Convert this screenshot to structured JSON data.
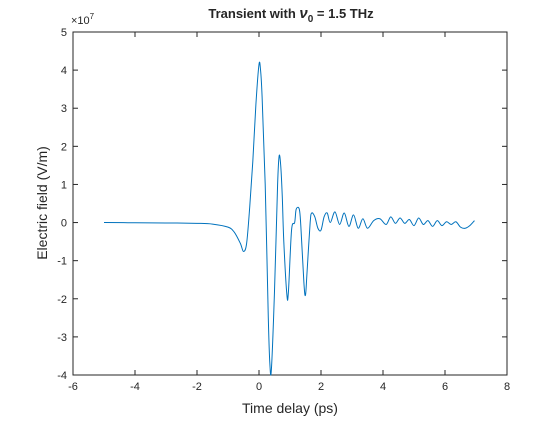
{
  "chart_data": {
    "type": "line",
    "title_main": "Transient with ",
    "title_symbol": "ν",
    "title_subscript": "0",
    "title_rest": " = 1.5 THz",
    "xlabel": "Time delay (ps)",
    "ylabel": "Electric field (V/m)",
    "exponent_base": "×10",
    "exponent_power": "7",
    "xlim": [
      -6,
      8
    ],
    "ylim": [
      -4,
      5
    ],
    "xticks": [
      -6,
      -4,
      -2,
      0,
      2,
      4,
      6,
      8
    ],
    "yticks": [
      -4,
      -3,
      -2,
      -1,
      0,
      1,
      2,
      3,
      4,
      5
    ],
    "xtick_labels": [
      "-6",
      "-4",
      "-2",
      "0",
      "2",
      "4",
      "6",
      "8"
    ],
    "ytick_labels": [
      "-4",
      "-3",
      "-2",
      "-1",
      "0",
      "1",
      "2",
      "3",
      "4",
      "5"
    ],
    "grid": false,
    "line_color": "#0072BD",
    "series": [
      {
        "x": [
          -5.0,
          -4.0,
          -3.0,
          -2.0,
          -1.5,
          -1.0,
          -0.8,
          -0.6,
          -0.5,
          -0.4,
          -0.3,
          -0.2,
          -0.1,
          0.0,
          0.05,
          0.1,
          0.2,
          0.3,
          0.35,
          0.4,
          0.5,
          0.6,
          0.65,
          0.7,
          0.75,
          0.8,
          0.9,
          0.95,
          1.05,
          1.15,
          1.2,
          1.3,
          1.35,
          1.45,
          1.5,
          1.55,
          1.65,
          1.7,
          1.8,
          1.9,
          2.0,
          2.1,
          2.2,
          2.3,
          2.45,
          2.6,
          2.75,
          2.9,
          3.05,
          3.2,
          3.35,
          3.5,
          3.7,
          3.9,
          4.1,
          4.25,
          4.4,
          4.55,
          4.7,
          4.85,
          5.0,
          5.15,
          5.3,
          5.45,
          5.6,
          5.75,
          5.9,
          6.05,
          6.2,
          6.35,
          6.5,
          6.65,
          6.8,
          6.95
        ],
        "y": [
          0.0,
          -0.005,
          -0.01,
          -0.02,
          -0.04,
          -0.12,
          -0.25,
          -0.55,
          -0.76,
          -0.55,
          0.4,
          1.6,
          3.1,
          4.15,
          4.0,
          3.3,
          1.0,
          -2.5,
          -3.7,
          -3.85,
          -1.8,
          1.0,
          1.75,
          1.5,
          0.7,
          -0.5,
          -1.9,
          -1.8,
          -0.2,
          0.0,
          0.35,
          0.35,
          -0.1,
          -1.6,
          -1.9,
          -1.3,
          0.0,
          0.25,
          0.15,
          -0.15,
          -0.2,
          0.15,
          0.25,
          0.0,
          0.28,
          -0.05,
          0.25,
          -0.1,
          0.2,
          -0.15,
          0.1,
          -0.15,
          0.05,
          0.1,
          -0.05,
          0.15,
          -0.02,
          0.12,
          -0.02,
          0.08,
          -0.08,
          0.12,
          -0.05,
          0.05,
          -0.1,
          0.05,
          -0.08,
          0.02,
          -0.05,
          0.02,
          -0.12,
          -0.15,
          -0.08,
          0.05
        ]
      }
    ]
  }
}
